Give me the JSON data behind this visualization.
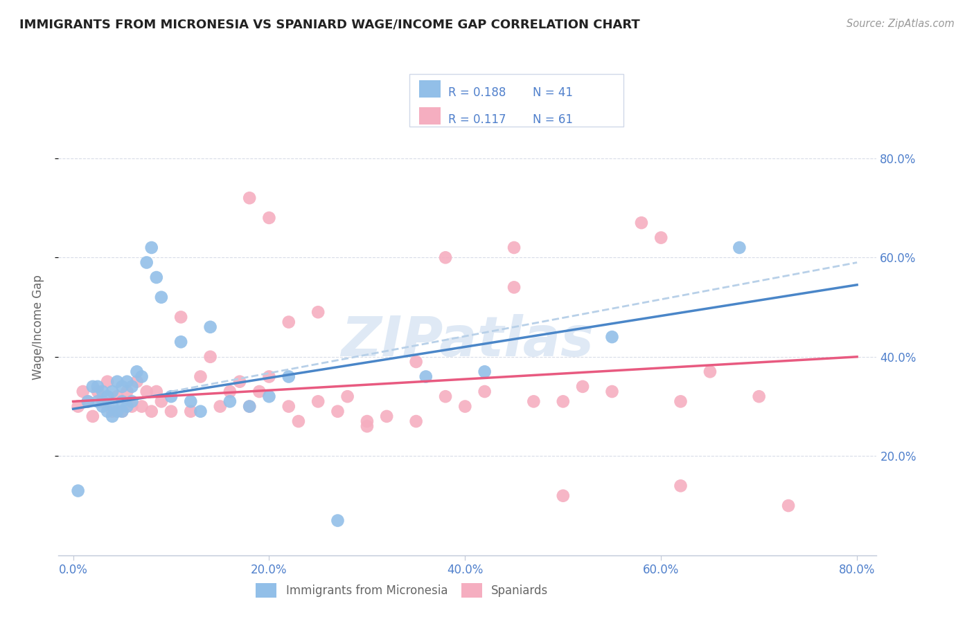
{
  "title": "IMMIGRANTS FROM MICRONESIA VS SPANIARD WAGE/INCOME GAP CORRELATION CHART",
  "source": "Source: ZipAtlas.com",
  "ylabel": "Wage/Income Gap",
  "y_tick_labels": [
    "20.0%",
    "40.0%",
    "60.0%",
    "80.0%"
  ],
  "y_tick_values": [
    0.2,
    0.4,
    0.6,
    0.8
  ],
  "x_tick_labels": [
    "0.0%",
    "20.0%",
    "40.0%",
    "60.0%",
    "80.0%"
  ],
  "x_tick_values": [
    0.0,
    0.2,
    0.4,
    0.6,
    0.8
  ],
  "legend_r_blue": "R = 0.188",
  "legend_n_blue": "N = 41",
  "legend_r_pink": "R = 0.117",
  "legend_n_pink": "N = 61",
  "legend_label_blue": "Immigrants from Micronesia",
  "legend_label_pink": "Spaniards",
  "blue_color": "#92bfe8",
  "pink_color": "#f5aec0",
  "blue_line_color": "#4a86c8",
  "pink_line_color": "#e85a80",
  "dashed_line_color": "#b8d0e8",
  "axis_color": "#c0c8d8",
  "grid_color": "#d8dce8",
  "title_color": "#222222",
  "source_color": "#999999",
  "tick_label_color": "#5080cc",
  "ylabel_color": "#666666",
  "background_color": "#ffffff",
  "watermark_text": "ZIPatlas",
  "blue_scatter_x": [
    0.005,
    0.015,
    0.02,
    0.025,
    0.025,
    0.03,
    0.03,
    0.035,
    0.035,
    0.04,
    0.04,
    0.04,
    0.045,
    0.045,
    0.05,
    0.05,
    0.05,
    0.055,
    0.055,
    0.06,
    0.06,
    0.065,
    0.07,
    0.075,
    0.08,
    0.085,
    0.09,
    0.1,
    0.11,
    0.12,
    0.13,
    0.14,
    0.16,
    0.18,
    0.2,
    0.22,
    0.27,
    0.36,
    0.42,
    0.55,
    0.68
  ],
  "blue_scatter_y": [
    0.13,
    0.31,
    0.34,
    0.31,
    0.34,
    0.3,
    0.33,
    0.29,
    0.32,
    0.28,
    0.3,
    0.33,
    0.29,
    0.35,
    0.29,
    0.31,
    0.34,
    0.3,
    0.35,
    0.31,
    0.34,
    0.37,
    0.36,
    0.59,
    0.62,
    0.56,
    0.52,
    0.32,
    0.43,
    0.31,
    0.29,
    0.46,
    0.31,
    0.3,
    0.32,
    0.36,
    0.07,
    0.36,
    0.37,
    0.44,
    0.62
  ],
  "pink_scatter_x": [
    0.005,
    0.01,
    0.015,
    0.02,
    0.025,
    0.03,
    0.035,
    0.04,
    0.045,
    0.05,
    0.055,
    0.06,
    0.065,
    0.07,
    0.075,
    0.08,
    0.085,
    0.09,
    0.1,
    0.11,
    0.12,
    0.13,
    0.14,
    0.15,
    0.16,
    0.17,
    0.18,
    0.19,
    0.2,
    0.22,
    0.23,
    0.25,
    0.27,
    0.28,
    0.3,
    0.32,
    0.35,
    0.38,
    0.4,
    0.42,
    0.45,
    0.47,
    0.5,
    0.52,
    0.55,
    0.58,
    0.6,
    0.62,
    0.65,
    0.7,
    0.18,
    0.2,
    0.22,
    0.25,
    0.3,
    0.35,
    0.38,
    0.45,
    0.5,
    0.62,
    0.73
  ],
  "pink_scatter_y": [
    0.3,
    0.33,
    0.31,
    0.28,
    0.33,
    0.31,
    0.35,
    0.29,
    0.32,
    0.29,
    0.33,
    0.3,
    0.35,
    0.3,
    0.33,
    0.29,
    0.33,
    0.31,
    0.29,
    0.48,
    0.29,
    0.36,
    0.4,
    0.3,
    0.33,
    0.35,
    0.3,
    0.33,
    0.36,
    0.3,
    0.27,
    0.31,
    0.29,
    0.32,
    0.27,
    0.28,
    0.27,
    0.32,
    0.3,
    0.33,
    0.54,
    0.31,
    0.31,
    0.34,
    0.33,
    0.67,
    0.64,
    0.31,
    0.37,
    0.32,
    0.72,
    0.68,
    0.47,
    0.49,
    0.26,
    0.39,
    0.6,
    0.62,
    0.12,
    0.14,
    0.1
  ],
  "blue_line_x": [
    0.0,
    0.8
  ],
  "blue_line_y_start": 0.295,
  "blue_line_y_end": 0.545,
  "pink_line_x": [
    0.0,
    0.8
  ],
  "pink_line_y_start": 0.31,
  "pink_line_y_end": 0.4,
  "dashed_line_x": [
    0.1,
    0.8
  ],
  "dashed_line_y_start": 0.33,
  "dashed_line_y_end": 0.59
}
